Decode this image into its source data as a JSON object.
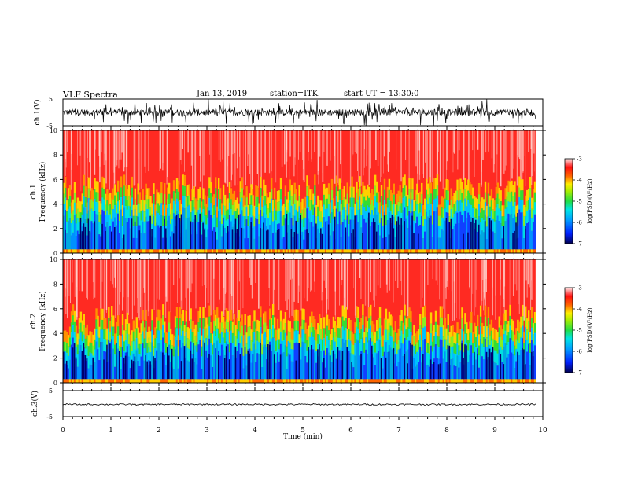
{
  "header": {
    "title": "VLF Spectra",
    "date": "Jan 13, 2019",
    "station": "station=ITK",
    "start": "start UT = 13:30:0"
  },
  "colors": {
    "red": "#ff2020",
    "yellow": "#ffee00",
    "green": "#22dd44",
    "cyan": "#00e5e5",
    "blue": "#1060ff",
    "navy": "#000060"
  },
  "chart_data": [
    {
      "type": "line",
      "name": "waveform-ch1",
      "ylabel": "ch.1(V)",
      "yticks": [
        "5",
        "-5"
      ],
      "ylim": [
        -5,
        5
      ],
      "xlim": [
        0,
        10
      ]
    },
    {
      "type": "heatmap",
      "name": "spectrogram-ch1",
      "ylabel_lines": [
        "ch.1",
        "Frequency (kHz)"
      ],
      "yticks": [
        "0",
        "2",
        "4",
        "6",
        "8",
        "10"
      ],
      "ylim": [
        0,
        10
      ],
      "xlim": [
        0,
        10
      ],
      "colorbar": {
        "label": "log(PSD)(V²/Hz)",
        "ticks": [
          "-3",
          "-4",
          "-5",
          "-6",
          "-7"
        ],
        "range": [
          -7,
          -3
        ]
      }
    },
    {
      "type": "heatmap",
      "name": "spectrogram-ch2",
      "ylabel_lines": [
        "ch.2",
        "Frequency (kHz)"
      ],
      "yticks": [
        "0",
        "2",
        "4",
        "6",
        "8",
        "10"
      ],
      "ylim": [
        0,
        10
      ],
      "xlim": [
        0,
        10
      ],
      "colorbar": {
        "label": "log(PSD)(V²/Hz)",
        "ticks": [
          "-3",
          "-4",
          "-5",
          "-6",
          "-7"
        ],
        "range": [
          -7,
          -3
        ]
      }
    },
    {
      "type": "line",
      "name": "waveform-ch3",
      "ylabel": "ch.3(V)",
      "yticks": [
        "5",
        "-5"
      ],
      "ylim": [
        -5,
        5
      ],
      "xlim": [
        0,
        10
      ],
      "xlabel": "Time (min)",
      "xticks": [
        "0",
        "1",
        "2",
        "3",
        "4",
        "5",
        "6",
        "7",
        "8",
        "9",
        "10"
      ]
    }
  ]
}
